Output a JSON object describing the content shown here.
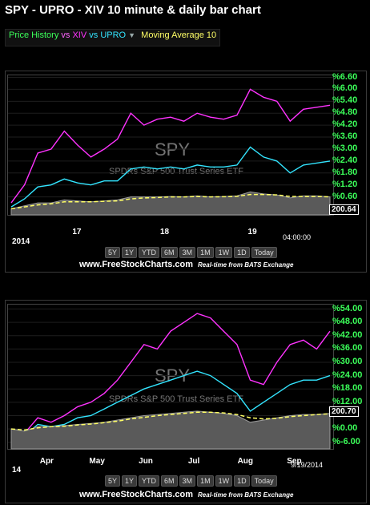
{
  "title": "SPY - UPRO - XIV 10 minute & daily bar chart",
  "legend": {
    "price_history": "Price History",
    "vs1": " vs ",
    "xiv": "XIV",
    "vs2": " vs ",
    "upro": "UPRO",
    "dropdown": "▼",
    "ma": "Moving Average 10"
  },
  "colors": {
    "spy": "#c8c8c8",
    "xiv": "#ff33ff",
    "upro": "#33e5ff",
    "ma": "#ffff66",
    "axis": "#3cff5a"
  },
  "watermark": {
    "symbol": "SPY",
    "name": "SPDRs S&P 500 Trust Series ETF"
  },
  "range_buttons": [
    "5Y",
    "1Y",
    "YTD",
    "6M",
    "3M",
    "1M",
    "1W",
    "1D",
    "Today"
  ],
  "footer": {
    "site": "www.FreeStockCharts.com",
    "realtime": "Real-time from BATS Exchange"
  },
  "chart_data": [
    {
      "type": "line",
      "title": "",
      "x_labels": [
        "17",
        "18",
        "19"
      ],
      "corner_left": "2014",
      "corner_right": "04:00:00",
      "y_tick_labels": [
        "%6.60",
        "%6.00",
        "%5.40",
        "%4.80",
        "%4.20",
        "%3.60",
        "%3.00",
        "%2.40",
        "%1.80",
        "%1.20",
        "%0.60"
      ],
      "y_ticks": [
        6.6,
        6.0,
        5.4,
        4.8,
        4.2,
        3.6,
        3.0,
        2.4,
        1.8,
        1.2,
        0.6
      ],
      "ylim": [
        -0.3,
        6.7
      ],
      "last_price": "200.64",
      "x": [
        0,
        1,
        2,
        3,
        4,
        5,
        6,
        7,
        8,
        9,
        10,
        11,
        12,
        13,
        14,
        15,
        16,
        17,
        18,
        19,
        20,
        21,
        22,
        23,
        24
      ],
      "series": [
        {
          "name": "XIV",
          "values": [
            0.3,
            1.2,
            2.8,
            3.0,
            3.9,
            3.2,
            2.6,
            3.0,
            3.5,
            4.8,
            4.2,
            4.5,
            4.6,
            4.4,
            4.8,
            4.6,
            4.5,
            4.7,
            6.0,
            5.6,
            5.4,
            4.4,
            5.0,
            5.1,
            5.2
          ]
        },
        {
          "name": "UPRO",
          "values": [
            0.1,
            0.5,
            1.1,
            1.2,
            1.5,
            1.3,
            1.2,
            1.4,
            1.4,
            2.0,
            2.1,
            2.0,
            2.1,
            2.0,
            2.2,
            2.1,
            2.1,
            2.2,
            3.1,
            2.6,
            2.4,
            1.8,
            2.2,
            2.3,
            2.4
          ]
        },
        {
          "name": "SPY",
          "values": [
            0.0,
            0.15,
            0.3,
            0.3,
            0.45,
            0.4,
            0.35,
            0.4,
            0.45,
            0.6,
            0.6,
            0.6,
            0.62,
            0.6,
            0.65,
            0.6,
            0.62,
            0.65,
            0.85,
            0.75,
            0.7,
            0.55,
            0.65,
            0.65,
            0.6
          ]
        },
        {
          "name": "Moving Average 10",
          "values": [
            0.0,
            0.1,
            0.2,
            0.25,
            0.35,
            0.35,
            0.35,
            0.38,
            0.4,
            0.5,
            0.55,
            0.57,
            0.6,
            0.6,
            0.62,
            0.6,
            0.61,
            0.63,
            0.72,
            0.72,
            0.7,
            0.62,
            0.62,
            0.62,
            0.6
          ]
        }
      ]
    },
    {
      "type": "line",
      "title": "",
      "x_labels": [
        "Apr",
        "May",
        "Jun",
        "Jul",
        "Aug",
        "Sep"
      ],
      "corner_left": "14",
      "corner_right": "9/19/2014",
      "y_tick_labels": [
        "%54.00",
        "%48.00",
        "%42.00",
        "%36.00",
        "%30.00",
        "%24.00",
        "%18.00",
        "%12.00",
        "%6.00",
        "%0.00",
        "%-6.00"
      ],
      "y_ticks": [
        54,
        48,
        42,
        36,
        30,
        24,
        18,
        12,
        6,
        0,
        -6
      ],
      "ylim": [
        -9,
        56
      ],
      "last_price": "200.70",
      "x": [
        0,
        1,
        2,
        3,
        4,
        5,
        6,
        7,
        8,
        9,
        10,
        11,
        12,
        13,
        14,
        15,
        16,
        17,
        18,
        19,
        20,
        21,
        22,
        23,
        24
      ],
      "series": [
        {
          "name": "XIV",
          "values": [
            0,
            -2,
            5,
            3,
            6,
            10,
            12,
            16,
            22,
            30,
            38,
            36,
            44,
            48,
            52,
            50,
            44,
            38,
            22,
            20,
            30,
            38,
            40,
            36,
            44
          ]
        },
        {
          "name": "UPRO",
          "values": [
            0,
            -3,
            2,
            1,
            2,
            5,
            6,
            9,
            12,
            15,
            18,
            20,
            22,
            24,
            26,
            24,
            20,
            16,
            8,
            12,
            16,
            20,
            22,
            22,
            24
          ]
        },
        {
          "name": "SPY",
          "values": [
            0,
            -1,
            1,
            1,
            1.5,
            2,
            2.5,
            3,
            4,
            5,
            6,
            6.5,
            7,
            7.5,
            8,
            7.5,
            7,
            6,
            3,
            4,
            5,
            6,
            6.5,
            6.5,
            7
          ]
        },
        {
          "name": "Moving Average 10",
          "values": [
            0,
            -0.5,
            0.5,
            1,
            1.2,
            1.8,
            2.2,
            2.8,
            3.5,
            4.5,
            5.2,
            6,
            6.5,
            7,
            7.5,
            7.5,
            7.2,
            6.5,
            5,
            4.5,
            4.8,
            5.5,
            6,
            6.5,
            6.8
          ]
        }
      ]
    }
  ]
}
